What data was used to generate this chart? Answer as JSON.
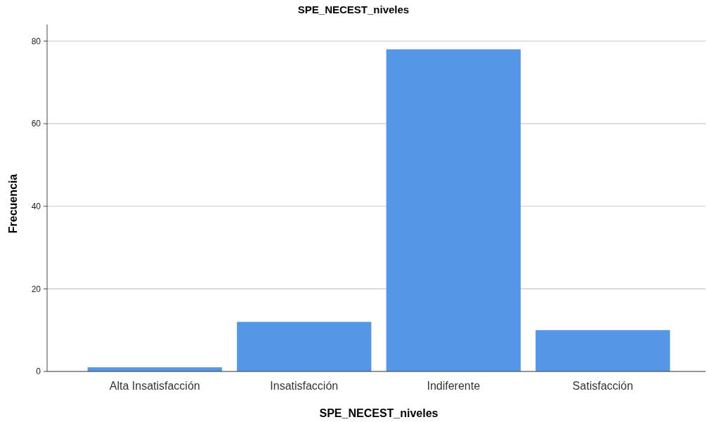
{
  "chart_data": {
    "type": "bar",
    "title": "SPE_NECEST_niveles",
    "xlabel": "SPE_NECEST_niveles",
    "ylabel": "Frecuencia",
    "categories": [
      "Alta Insatisfacción",
      "Insatisfacción",
      "Indiferente",
      "Satisfacción"
    ],
    "values": [
      1,
      12,
      78,
      10
    ],
    "color": "#5596e6",
    "ylim": [
      0,
      84
    ],
    "yticks": [
      0,
      20,
      40,
      60,
      80
    ],
    "grid": "y"
  }
}
